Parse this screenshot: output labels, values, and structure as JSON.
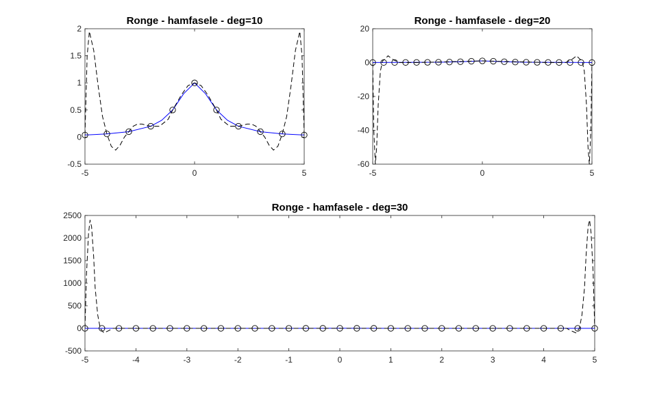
{
  "figure": {
    "background": "#ffffff"
  },
  "chart_data": [
    {
      "type": "line",
      "title": "Ronge -  hamfasele - deg=10",
      "xlabel": "",
      "ylabel": "",
      "xlim": [
        -5,
        5
      ],
      "ylim": [
        -0.5,
        2
      ],
      "xticks": [
        -5,
        0,
        5
      ],
      "yticks": [
        -0.5,
        0,
        0.5,
        1,
        1.5,
        2
      ],
      "ytick_labels": [
        "-0.5",
        "0",
        "0.5",
        "1",
        "1.5",
        "2"
      ],
      "degree": 10,
      "series": [
        {
          "kind": "true-function",
          "style": "solid",
          "color": "#0000ff",
          "x": [
            -5,
            -4,
            -3,
            -2,
            -1.5,
            -1,
            -0.5,
            0,
            0.5,
            1,
            1.5,
            2,
            3,
            4,
            5
          ],
          "y": [
            0.038,
            0.059,
            0.1,
            0.2,
            0.31,
            0.5,
            0.8,
            1,
            0.8,
            0.5,
            0.31,
            0.2,
            0.1,
            0.059,
            0.038
          ]
        },
        {
          "kind": "interpolant",
          "style": "dashed",
          "color": "#000000",
          "x": [
            -5,
            -4.9,
            -4.8,
            -4.6,
            -4.4,
            -4.2,
            -4,
            -3.8,
            -3.6,
            -3.4,
            -3.2,
            -3,
            -2.8,
            -2.6,
            -2.4,
            -2.2,
            -2,
            -1.6,
            -1.2,
            -1,
            -0.6,
            -0.3,
            0,
            0.3,
            0.6,
            1,
            1.2,
            1.6,
            2,
            2.2,
            2.4,
            2.6,
            2.8,
            3,
            3.2,
            3.4,
            3.6,
            3.8,
            4,
            4.2,
            4.4,
            4.6,
            4.8,
            4.9,
            5
          ],
          "y": [
            0.038,
            1.5,
            1.95,
            1.6,
            0.95,
            0.38,
            0.059,
            -0.17,
            -0.24,
            -0.15,
            0,
            0.1,
            0.2,
            0.24,
            0.24,
            0.22,
            0.2,
            0.2,
            0.33,
            0.5,
            0.78,
            0.95,
            1,
            0.95,
            0.78,
            0.5,
            0.33,
            0.2,
            0.2,
            0.22,
            0.24,
            0.24,
            0.2,
            0.1,
            0,
            -0.15,
            -0.24,
            -0.17,
            0.059,
            0.38,
            0.95,
            1.6,
            1.95,
            1.5,
            0.038
          ]
        },
        {
          "kind": "nodes",
          "style": "markers",
          "marker": "circle",
          "x": [
            -5,
            -4,
            -3,
            -2,
            -1,
            0,
            1,
            2,
            3,
            4,
            5
          ],
          "y": [
            0.038,
            0.059,
            0.1,
            0.2,
            0.5,
            1,
            0.5,
            0.2,
            0.1,
            0.059,
            0.038
          ]
        }
      ]
    },
    {
      "type": "line",
      "title": "Ronge -  hamfasele - deg=20",
      "xlabel": "",
      "ylabel": "",
      "xlim": [
        -5,
        5
      ],
      "ylim": [
        -60,
        20
      ],
      "xticks": [
        -5,
        0,
        5
      ],
      "yticks": [
        -60,
        -40,
        -20,
        0,
        20
      ],
      "ytick_labels": [
        "-60",
        "-40",
        "-20",
        "0",
        "20"
      ],
      "degree": 20,
      "series": [
        {
          "kind": "true-function",
          "style": "solid",
          "color": "#0000ff",
          "x": [
            -5,
            -2,
            -1,
            0,
            1,
            2,
            5
          ],
          "y": [
            0.038,
            0.2,
            0.5,
            1,
            0.5,
            0.2,
            0.038
          ]
        },
        {
          "kind": "interpolant",
          "style": "dashed",
          "color": "#000000",
          "x": [
            -5,
            -4.95,
            -4.88,
            -4.82,
            -4.75,
            -4.65,
            -4.55,
            -4.45,
            -4.3,
            -4.1,
            -3.8,
            -3,
            0,
            3,
            3.8,
            4.1,
            4.3,
            4.45,
            4.55,
            4.65,
            4.75,
            4.82,
            4.88,
            4.95,
            5
          ],
          "y": [
            0,
            -40,
            -60,
            -50,
            -25,
            -5,
            1,
            2,
            4,
            2,
            0,
            0,
            1,
            0,
            0,
            2,
            4,
            2,
            1,
            -5,
            -25,
            -50,
            -60,
            -40,
            0
          ]
        },
        {
          "kind": "nodes",
          "style": "markers",
          "marker": "circle",
          "x": [
            -5,
            -4.5,
            -4,
            -3.5,
            -3,
            -2.5,
            -2,
            -1.5,
            -1,
            -0.5,
            0,
            0.5,
            1,
            1.5,
            2,
            2.5,
            3,
            3.5,
            4,
            4.5,
            5
          ],
          "y": [
            0.04,
            0.05,
            0.06,
            0.08,
            0.1,
            0.14,
            0.2,
            0.31,
            0.5,
            0.8,
            1,
            0.8,
            0.5,
            0.31,
            0.2,
            0.14,
            0.1,
            0.08,
            0.06,
            0.05,
            0.04
          ]
        }
      ]
    },
    {
      "type": "line",
      "title": "Ronge -  hamfasele - deg=30",
      "xlabel": "",
      "ylabel": "",
      "xlim": [
        -5,
        5
      ],
      "ylim": [
        -500,
        2500
      ],
      "xticks": [
        -5,
        -4,
        -3,
        -2,
        -1,
        0,
        1,
        2,
        3,
        4,
        5
      ],
      "yticks": [
        -500,
        0,
        500,
        1000,
        1500,
        2000,
        2500
      ],
      "ytick_labels": [
        "-500",
        "0",
        "500",
        "1000",
        "1500",
        "2000",
        "2500"
      ],
      "degree": 30,
      "series": [
        {
          "kind": "true-function",
          "style": "solid",
          "color": "#0000ff",
          "x": [
            -5,
            -1,
            0,
            1,
            5
          ],
          "y": [
            0.04,
            0.5,
            1,
            0.5,
            0.04
          ]
        },
        {
          "kind": "interpolant",
          "style": "dashed",
          "color": "#000000",
          "x": [
            -5,
            -4.97,
            -4.93,
            -4.9,
            -4.87,
            -4.83,
            -4.8,
            -4.75,
            -4.7,
            -4.63,
            -4.55,
            -4.45,
            -4,
            0,
            4,
            4.45,
            4.55,
            4.63,
            4.7,
            4.75,
            4.8,
            4.83,
            4.87,
            4.9,
            4.93,
            4.97,
            5
          ],
          "y": [
            0,
            1200,
            2100,
            2400,
            2250,
            1600,
            900,
            300,
            0,
            -100,
            -60,
            0,
            0,
            0,
            0,
            0,
            -60,
            -100,
            0,
            300,
            900,
            1600,
            2250,
            2400,
            2100,
            1200,
            0
          ]
        },
        {
          "kind": "nodes",
          "style": "markers",
          "marker": "circle",
          "x": [
            -5,
            -4.6667,
            -4.3333,
            -4,
            -3.6667,
            -3.3333,
            -3,
            -2.6667,
            -2.3333,
            -2,
            -1.6667,
            -1.3333,
            -1,
            -0.6667,
            -0.3333,
            0,
            0.3333,
            0.6667,
            1,
            1.3333,
            1.6667,
            2,
            2.3333,
            2.6667,
            3,
            3.3333,
            3.6667,
            4,
            4.3333,
            4.6667,
            5
          ],
          "y": [
            0.04,
            0.04,
            0.05,
            0.06,
            0.07,
            0.08,
            0.1,
            0.12,
            0.16,
            0.2,
            0.26,
            0.36,
            0.5,
            0.69,
            0.9,
            1,
            0.9,
            0.69,
            0.5,
            0.36,
            0.26,
            0.2,
            0.16,
            0.12,
            0.1,
            0.08,
            0.07,
            0.06,
            0.05,
            0.04,
            0.04
          ]
        }
      ]
    }
  ]
}
